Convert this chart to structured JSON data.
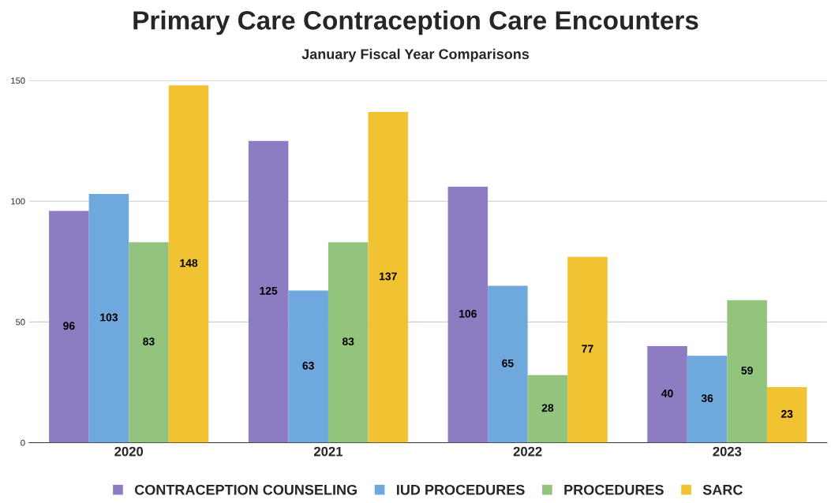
{
  "chart_data": {
    "type": "bar",
    "title": "Primary Care Contraception Care Encounters",
    "subtitle": "January Fiscal Year Comparisons",
    "categories": [
      "2020",
      "2021",
      "2022",
      "2023"
    ],
    "series": [
      {
        "name": "CONTRACEPTION COUNSELING",
        "color": "#8e7cc3",
        "values": [
          96,
          125,
          106,
          40
        ]
      },
      {
        "name": "IUD PROCEDURES",
        "color": "#6fa8dc",
        "values": [
          103,
          63,
          65,
          36
        ]
      },
      {
        "name": "PROCEDURES",
        "color": "#93c47d",
        "values": [
          83,
          83,
          28,
          59
        ]
      },
      {
        "name": "SARC",
        "color": "#f1c232",
        "values": [
          148,
          137,
          77,
          23
        ]
      }
    ],
    "ylim": [
      0,
      150
    ],
    "yticks": [
      0,
      50,
      100,
      150
    ],
    "grid": "y",
    "legend": "bottom",
    "data_labels": true
  }
}
